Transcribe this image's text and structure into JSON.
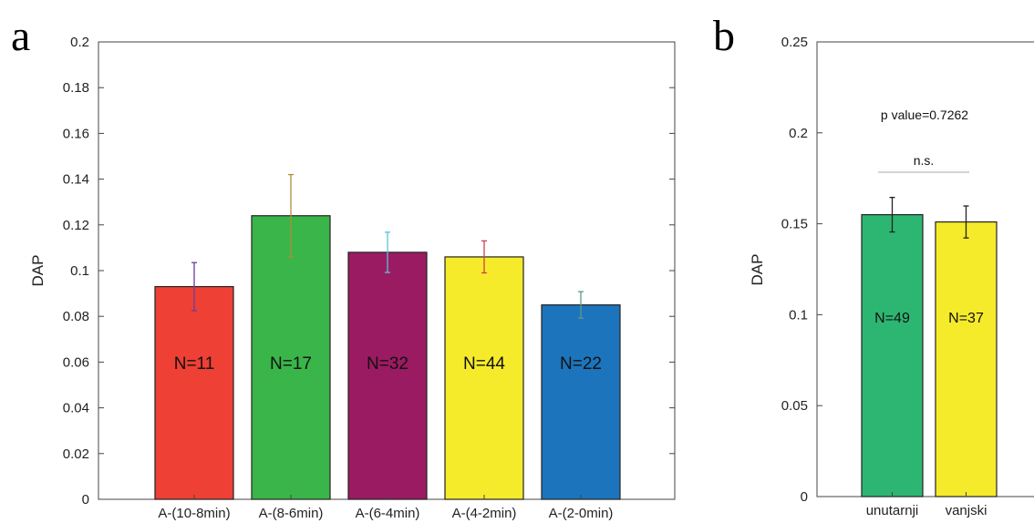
{
  "chart_data": [
    {
      "panel_letter": "a",
      "type": "bar",
      "title": "",
      "xlabel": "",
      "ylabel": "DAP",
      "ylim": [
        0,
        0.2
      ],
      "yticks": [
        "0",
        "0.02",
        "0.04",
        "0.06",
        "0.08",
        "0.1",
        "0.12",
        "0.14",
        "0.16",
        "0.18",
        "0.2"
      ],
      "categories": [
        "A-(10-8min)",
        "A-(8-6min)",
        "A-(6-4min)",
        "A-(4-2min)",
        "A-(2-0min)"
      ],
      "values": [
        0.093,
        0.124,
        0.108,
        0.106,
        0.085
      ],
      "errors": [
        0.0105,
        0.018,
        0.0088,
        0.007,
        0.0058
      ],
      "bar_labels": [
        "N=11",
        "N=17",
        "N=32",
        "N=44",
        "N=22"
      ],
      "colors": [
        "#EE4035",
        "#3AB54A",
        "#9B1B62",
        "#F6EB2B",
        "#1C75BC"
      ],
      "error_colors": [
        "#6A3D9A",
        "#B08D3A",
        "#5BC0DE",
        "#D04050",
        "#5A9A8A"
      ],
      "grid": false
    },
    {
      "panel_letter": "b",
      "type": "bar",
      "title": "",
      "xlabel": "",
      "ylabel": "DAP",
      "ylim": [
        0,
        0.25
      ],
      "yticks": [
        "0",
        "0.05",
        "0.1",
        "0.15",
        "0.2",
        "0.25"
      ],
      "categories": [
        "unutarnji",
        "vanjski"
      ],
      "values": [
        0.155,
        0.151
      ],
      "errors": [
        0.0095,
        0.0088
      ],
      "bar_labels": [
        "N=49",
        "N=37"
      ],
      "colors": [
        "#2DB672",
        "#F6EB2B"
      ],
      "error_colors": [
        "#222222",
        "#222222"
      ],
      "annotations": {
        "p_value": "p value=0.7262",
        "significance": "n.s."
      },
      "grid": false
    }
  ]
}
